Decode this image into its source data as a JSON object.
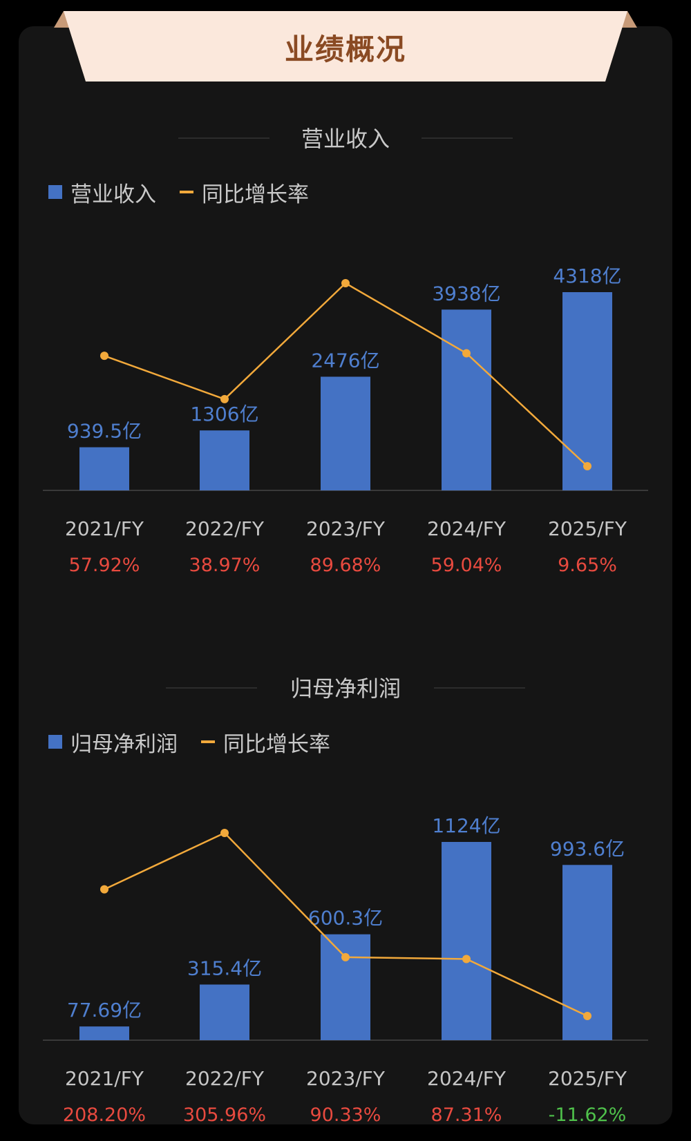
{
  "header": {
    "title": "业绩概况"
  },
  "colors": {
    "bar": "#4472c4",
    "line": "#f2a93b",
    "positive": "#e84a3f",
    "negative": "#4fc14b"
  },
  "chart_data": [
    {
      "type": "bar",
      "title": "营业收入",
      "categories": [
        "2021/FY",
        "2022/FY",
        "2023/FY",
        "2024/FY",
        "2025/FY"
      ],
      "series": [
        {
          "name": "营业收入",
          "type": "bar",
          "values": [
            939.5,
            1306,
            2476,
            3938,
            4318
          ],
          "labels": [
            "939.5亿",
            "1306亿",
            "2476亿",
            "3938亿",
            "4318亿"
          ]
        },
        {
          "name": "同比增长率",
          "type": "line",
          "values": [
            57.92,
            38.97,
            89.68,
            59.04,
            9.65
          ],
          "labels": [
            "57.92%",
            "38.97%",
            "89.68%",
            "59.04%",
            "9.65%"
          ]
        }
      ],
      "legend": [
        "营业收入",
        "同比增长率"
      ],
      "ylim": [
        0,
        4318
      ],
      "ylim_rate": [
        9.65,
        89.68
      ],
      "grid": false,
      "legend_position": "top-left"
    },
    {
      "type": "bar",
      "title": "归母净利润",
      "categories": [
        "2021/FY",
        "2022/FY",
        "2023/FY",
        "2024/FY",
        "2025/FY"
      ],
      "series": [
        {
          "name": "归母净利润",
          "type": "bar",
          "values": [
            77.69,
            315.4,
            600.3,
            1124,
            993.6
          ],
          "labels": [
            "77.69亿",
            "315.4亿",
            "600.3亿",
            "1124亿",
            "993.6亿"
          ]
        },
        {
          "name": "同比增长率",
          "type": "line",
          "values": [
            208.2,
            305.96,
            90.33,
            87.31,
            -11.62
          ],
          "labels": [
            "208.20%",
            "305.96%",
            "90.33%",
            "87.31%",
            "-11.62%"
          ]
        }
      ],
      "legend": [
        "归母净利润",
        "同比增长率"
      ],
      "ylim": [
        0,
        1124
      ],
      "ylim_rate": [
        -11.62,
        305.96
      ],
      "grid": false,
      "legend_position": "top-left"
    }
  ]
}
